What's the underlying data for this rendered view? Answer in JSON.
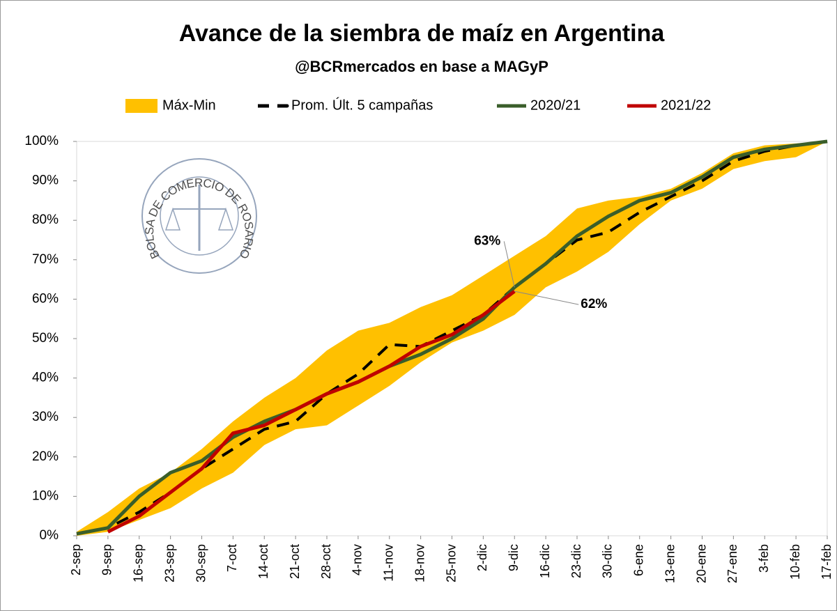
{
  "chart_data": {
    "type": "line",
    "title": "Avance de la siembra de maíz en Argentina",
    "subtitle": "@BCRmercados en base a MAGyP",
    "watermark": "BOLSA DE COMERCIO DE ROSARIO",
    "categories": [
      "2-sep",
      "9-sep",
      "16-sep",
      "23-sep",
      "30-sep",
      "7-oct",
      "14-oct",
      "21-oct",
      "28-oct",
      "4-nov",
      "11-nov",
      "18-nov",
      "25-nov",
      "2-dic",
      "9-dic",
      "16-dic",
      "23-dic",
      "30-dic",
      "6-ene",
      "13-ene",
      "20-ene",
      "27-ene",
      "3-feb",
      "10-feb",
      "17-feb"
    ],
    "band": {
      "name": "Máx-Min",
      "color": "#ffc000",
      "high": [
        1,
        6,
        12,
        16,
        22,
        29,
        35,
        40,
        47,
        52,
        54,
        58,
        61,
        66,
        71,
        76,
        83,
        85,
        86,
        88,
        92,
        97,
        99,
        99.5,
        100
      ],
      "low": [
        0,
        1,
        4,
        7,
        12,
        16,
        23,
        27,
        28,
        33,
        38,
        44,
        49,
        52,
        56,
        63,
        67,
        72,
        79,
        85,
        88,
        93,
        95,
        96,
        100
      ]
    },
    "series": [
      {
        "name": "Prom. Últ. 5 campañas",
        "color": "#000000",
        "dash": true,
        "values": [
          0.5,
          2,
          6,
          11,
          17,
          22,
          27,
          29,
          36,
          41,
          48.5,
          48,
          52,
          56,
          63,
          69,
          75,
          77,
          82,
          86,
          90,
          95,
          97.5,
          99,
          100
        ],
        "value_labels": [
          null,
          null,
          null,
          null,
          null,
          null,
          null,
          null,
          null,
          null,
          null,
          null,
          null,
          null,
          "63%",
          null,
          null,
          null,
          null,
          null,
          null,
          null,
          null,
          null,
          null
        ]
      },
      {
        "name": "2020/21",
        "color": "#3a5e2a",
        "values": [
          0.5,
          2,
          10,
          16,
          19,
          25,
          29,
          32,
          36,
          39,
          43,
          46,
          50,
          55,
          63,
          69,
          76,
          81,
          85,
          87,
          91,
          96,
          98,
          99,
          100
        ]
      },
      {
        "name": "2021/22",
        "color": "#c00000",
        "values": [
          null,
          1,
          5,
          11,
          17,
          26,
          28,
          32,
          36,
          39,
          43,
          48,
          51,
          56,
          62,
          null,
          null,
          null,
          null,
          null,
          null,
          null,
          null,
          null,
          null
        ],
        "value_labels": [
          null,
          null,
          null,
          null,
          null,
          null,
          null,
          null,
          null,
          null,
          null,
          null,
          null,
          null,
          "62%",
          null,
          null,
          null,
          null,
          null,
          null,
          null,
          null,
          null,
          null
        ]
      }
    ],
    "ylim": [
      0,
      100
    ],
    "yticks": [
      {
        "value": 0,
        "label": "0%"
      },
      {
        "value": 10,
        "label": "10%"
      },
      {
        "value": 20,
        "label": "20%"
      },
      {
        "value": 30,
        "label": "30%"
      },
      {
        "value": 40,
        "label": "40%"
      },
      {
        "value": 50,
        "label": "50%"
      },
      {
        "value": 60,
        "label": "60%"
      },
      {
        "value": 70,
        "label": "70%"
      },
      {
        "value": 80,
        "label": "80%"
      },
      {
        "value": 90,
        "label": "90%"
      },
      {
        "value": 100,
        "label": "100%"
      }
    ],
    "legend": "top"
  }
}
